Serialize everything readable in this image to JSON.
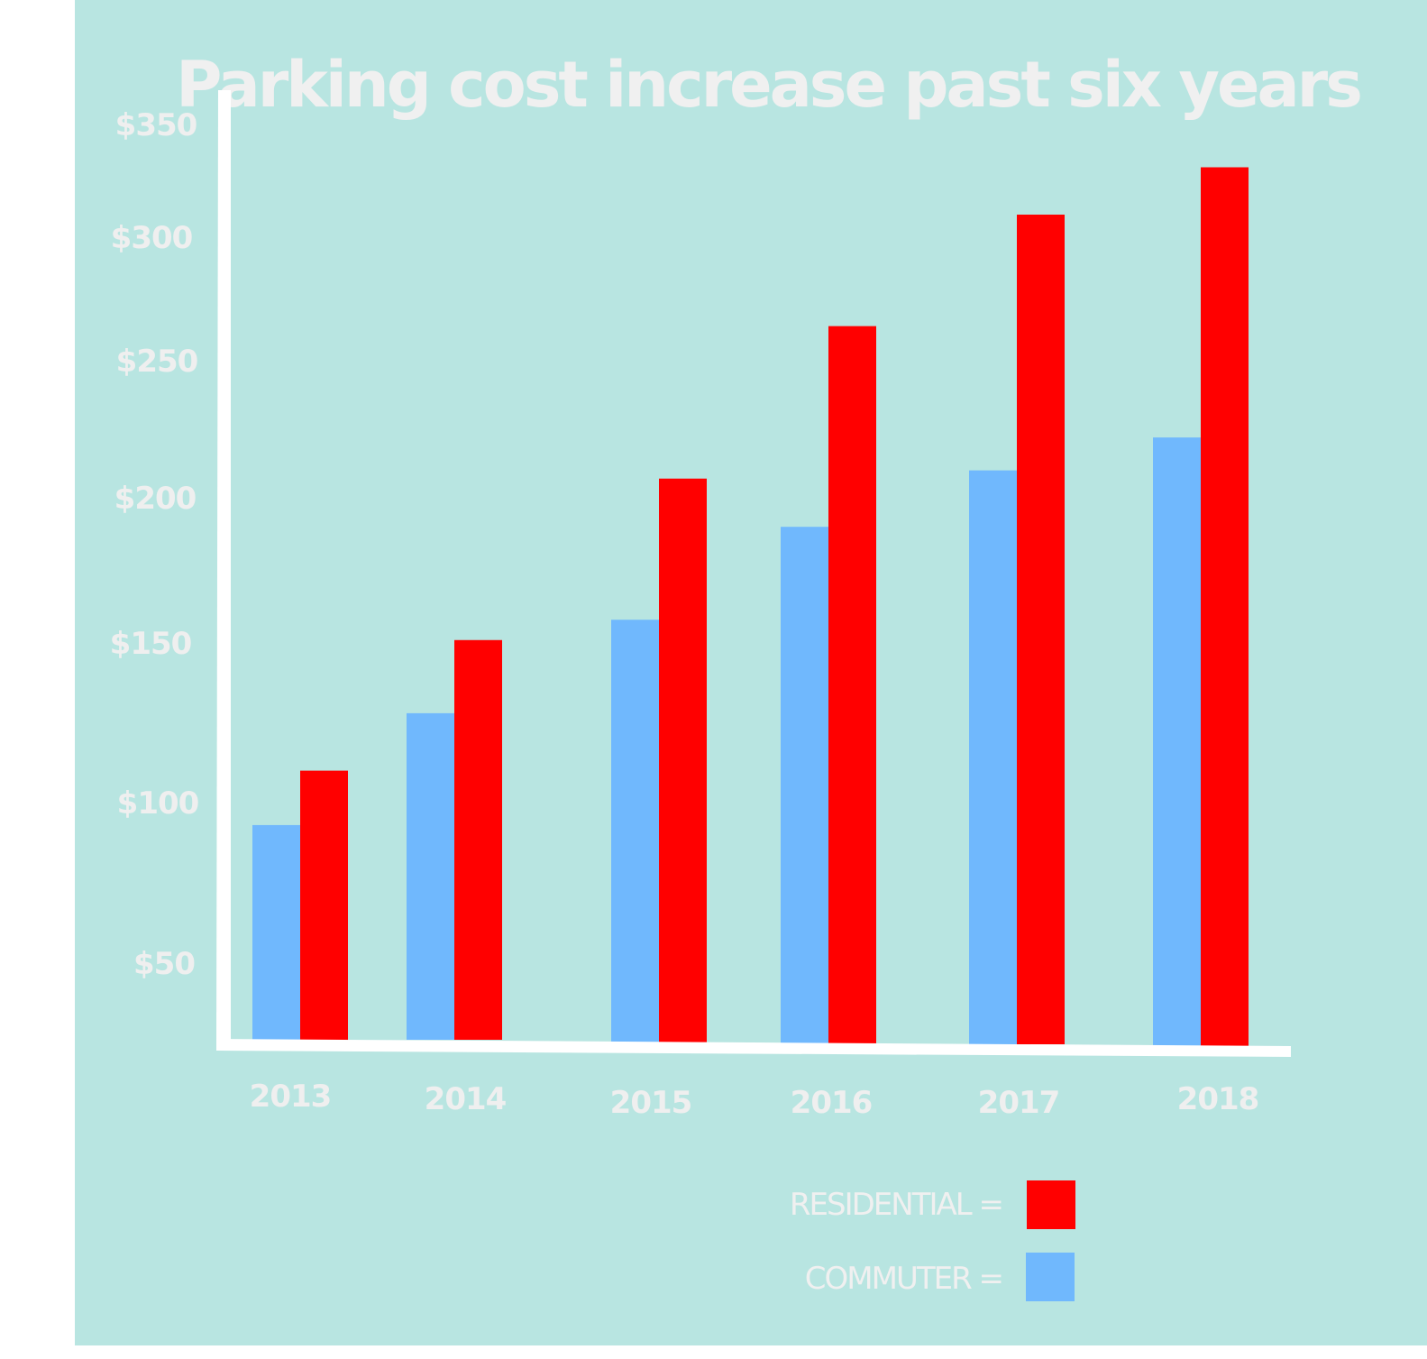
{
  "chart_data": {
    "type": "bar",
    "title": "Parking cost increase past six years",
    "xlabel": "",
    "ylabel": "",
    "categories": [
      "2013",
      "2014",
      "2015",
      "2016",
      "2017",
      "2018"
    ],
    "series": [
      {
        "name": "COMMUTER",
        "color": "#70b8fd",
        "values": [
          93,
          128,
          158,
          190,
          210,
          222
        ]
      },
      {
        "name": "RESIDENTIAL",
        "color": "#ff0000",
        "values": [
          110,
          151,
          207,
          264,
          310,
          331
        ]
      }
    ],
    "y_ticks": [
      {
        "value": 50,
        "label": "$50"
      },
      {
        "value": 100,
        "label": "$100"
      },
      {
        "value": 150,
        "label": "$150"
      },
      {
        "value": 200,
        "label": "$200"
      },
      {
        "value": 250,
        "label": "$250"
      },
      {
        "value": 300,
        "label": "$300"
      },
      {
        "value": 350,
        "label": "$350"
      }
    ],
    "ylim": [
      0,
      350
    ],
    "grid": false,
    "legend": {
      "placement": "bottom-right",
      "entries": [
        {
          "label": "RESIDENTIAL =",
          "color": "#ff0000"
        },
        {
          "label": "COMMUTER =",
          "color": "#70b8fd"
        }
      ]
    },
    "colors": {
      "background": "#b8e5e1",
      "text": "#f0f0f0",
      "axis": "#ffffff"
    }
  }
}
